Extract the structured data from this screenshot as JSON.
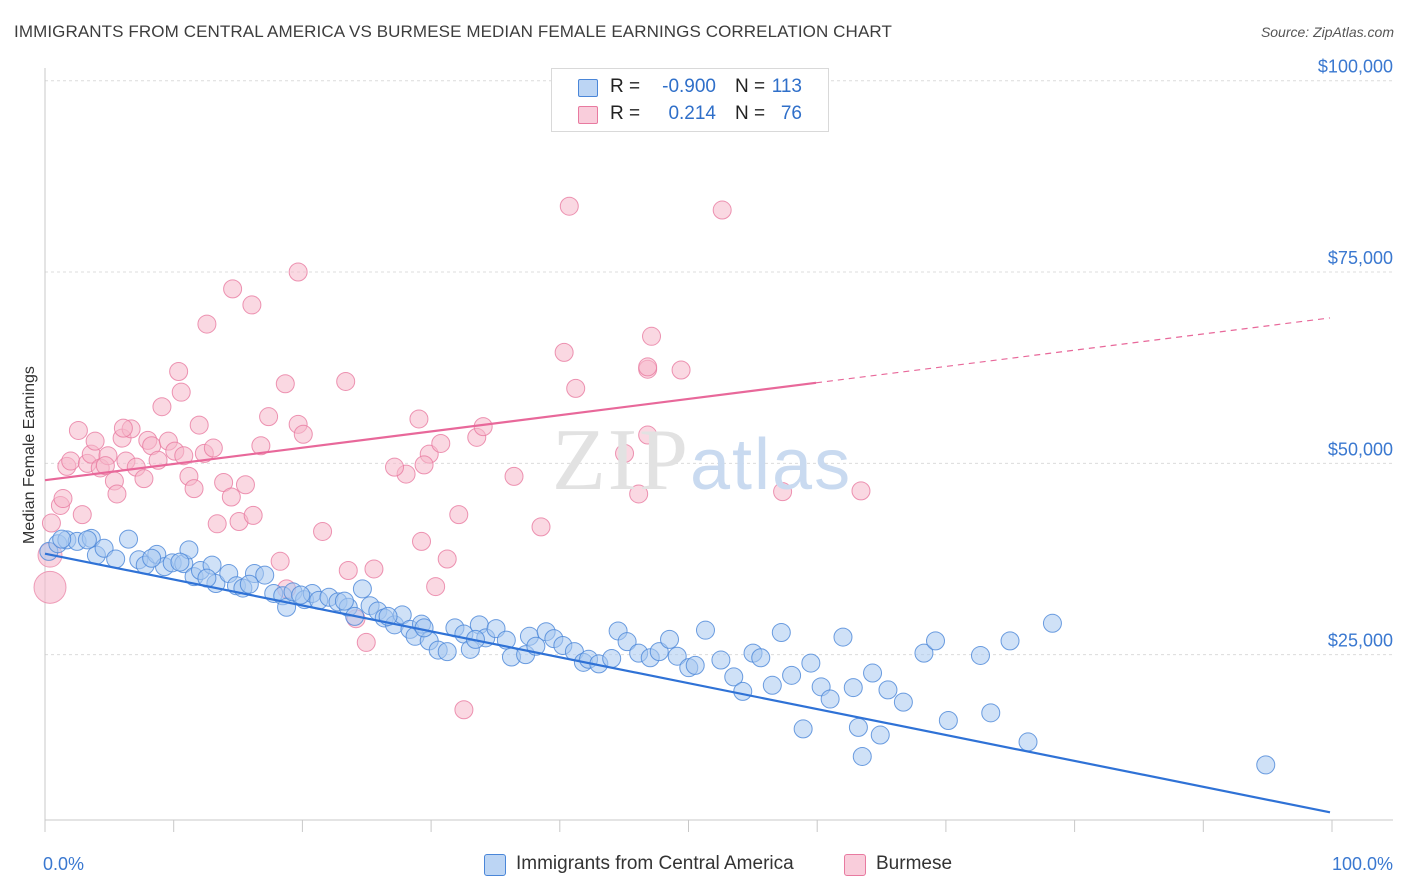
{
  "header": {
    "title": "IMMIGRANTS FROM CENTRAL AMERICA VS BURMESE MEDIAN FEMALE EARNINGS CORRELATION CHART",
    "source": "Source: ZipAtlas.com"
  },
  "watermark": {
    "zip": "ZIP",
    "atlas": "atlas"
  },
  "legend_top": {
    "rows": [
      {
        "r_label": "R =",
        "r_value": "-0.900",
        "n_label": "N =",
        "n_value": "113",
        "color": "#a8c8f0"
      },
      {
        "r_label": "R =",
        "r_value": "0.214",
        "n_label": "N =",
        "n_value": "76",
        "color": "#f5b8cb"
      }
    ]
  },
  "legend_bottom": {
    "items": [
      {
        "label": "Immigrants from Central America",
        "color": "#a8c8f0"
      },
      {
        "label": "Burmese",
        "color": "#f5b8cb"
      }
    ]
  },
  "chart_data": {
    "type": "scatter",
    "title": "IMMIGRANTS FROM CENTRAL AMERICA VS BURMESE MEDIAN FEMALE EARNINGS CORRELATION CHART",
    "xlabel": "",
    "ylabel": "Median Female Earnings",
    "xlim": [
      0,
      100
    ],
    "ylim": [
      0,
      105000
    ],
    "x_tick_labels": [
      "0.0%",
      "100.0%"
    ],
    "y_ticks": [
      25000,
      50000,
      75000,
      100000
    ],
    "y_tick_labels": [
      "$25,000",
      "$50,000",
      "$75,000",
      "$100,000"
    ],
    "grid": "horizontal dashed",
    "legend": "top-center",
    "colors": {
      "blue": "#4a86d8",
      "blue_fill": "#a8c8f0",
      "blue_line": "#2f72d6",
      "pink": "#e87aa0",
      "pink_fill": "#f5b8cb",
      "pink_line": "#e8689a"
    },
    "series": [
      {
        "name": "Immigrants from Central America",
        "color": "blue",
        "trend": {
          "x0": 0,
          "y0": 38200,
          "x1": 100,
          "y1": 4400,
          "dashed_from": null
        },
        "points": [
          [
            0.3,
            38500
          ],
          [
            1,
            39500
          ],
          [
            1.7,
            40000
          ],
          [
            2.5,
            39800
          ],
          [
            3.6,
            40200
          ],
          [
            4,
            38000
          ],
          [
            4.6,
            38900
          ],
          [
            6.5,
            40100
          ],
          [
            7.3,
            37400
          ],
          [
            7.8,
            36700
          ],
          [
            8.7,
            38100
          ],
          [
            9.3,
            36500
          ],
          [
            9.9,
            37000
          ],
          [
            10.8,
            36900
          ],
          [
            11.2,
            38700
          ],
          [
            11.6,
            35200
          ],
          [
            12.1,
            36000
          ],
          [
            13,
            36700
          ],
          [
            13.3,
            34300
          ],
          [
            14.3,
            35600
          ],
          [
            14.9,
            34000
          ],
          [
            15.4,
            33700
          ],
          [
            16.3,
            35600
          ],
          [
            17.1,
            35400
          ],
          [
            17.8,
            33000
          ],
          [
            18.5,
            32700
          ],
          [
            18.8,
            31200
          ],
          [
            19.3,
            33200
          ],
          [
            20.2,
            32200
          ],
          [
            20.8,
            33000
          ],
          [
            21.3,
            32100
          ],
          [
            22.1,
            32500
          ],
          [
            22.8,
            31900
          ],
          [
            23.6,
            31200
          ],
          [
            24.1,
            30000
          ],
          [
            24.7,
            33600
          ],
          [
            25.3,
            31400
          ],
          [
            25.9,
            30700
          ],
          [
            26.4,
            29800
          ],
          [
            27.2,
            28900
          ],
          [
            27.8,
            30200
          ],
          [
            28.4,
            28300
          ],
          [
            28.8,
            27400
          ],
          [
            29.3,
            29000
          ],
          [
            29.9,
            26800
          ],
          [
            30.6,
            25600
          ],
          [
            31.3,
            25400
          ],
          [
            31.9,
            28500
          ],
          [
            32.6,
            27700
          ],
          [
            33.1,
            25700
          ],
          [
            33.8,
            28900
          ],
          [
            34.3,
            27200
          ],
          [
            35.1,
            28400
          ],
          [
            35.9,
            26900
          ],
          [
            36.3,
            24700
          ],
          [
            37.4,
            25000
          ],
          [
            37.7,
            27400
          ],
          [
            38.2,
            26100
          ],
          [
            39,
            28000
          ],
          [
            39.6,
            27100
          ],
          [
            40.3,
            26200
          ],
          [
            41.2,
            25400
          ],
          [
            41.9,
            24000
          ],
          [
            42.3,
            24400
          ],
          [
            43.1,
            23800
          ],
          [
            44.1,
            24500
          ],
          [
            44.6,
            28100
          ],
          [
            45.3,
            26700
          ],
          [
            46.2,
            25200
          ],
          [
            47.1,
            24600
          ],
          [
            47.8,
            25400
          ],
          [
            48.6,
            27000
          ],
          [
            49.2,
            24800
          ],
          [
            50.1,
            23300
          ],
          [
            50.6,
            23600
          ],
          [
            51.4,
            28200
          ],
          [
            52.6,
            24300
          ],
          [
            53.6,
            22100
          ],
          [
            54.3,
            20200
          ],
          [
            55.1,
            25200
          ],
          [
            55.7,
            24600
          ],
          [
            56.6,
            21000
          ],
          [
            57.3,
            27900
          ],
          [
            58.1,
            22300
          ],
          [
            59,
            15300
          ],
          [
            59.6,
            23900
          ],
          [
            60.4,
            20800
          ],
          [
            61.1,
            19200
          ],
          [
            62.1,
            27300
          ],
          [
            62.9,
            20700
          ],
          [
            63.6,
            11700
          ],
          [
            63.3,
            15500
          ],
          [
            64.4,
            22600
          ],
          [
            65,
            14500
          ],
          [
            65.6,
            20400
          ],
          [
            66.8,
            18800
          ],
          [
            68.4,
            25200
          ],
          [
            69.3,
            26800
          ],
          [
            70.3,
            16400
          ],
          [
            72.8,
            24900
          ],
          [
            73.6,
            17400
          ],
          [
            75.1,
            26800
          ],
          [
            76.5,
            13600
          ],
          [
            78.4,
            29100
          ],
          [
            95,
            10600
          ],
          [
            1.3,
            40100
          ],
          [
            3.3,
            40000
          ],
          [
            5.5,
            37500
          ],
          [
            8.3,
            37600
          ],
          [
            10.5,
            37100
          ],
          [
            12.6,
            35000
          ],
          [
            15.9,
            34200
          ],
          [
            19.9,
            32800
          ],
          [
            23.3,
            32000
          ],
          [
            26.7,
            30000
          ],
          [
            29.5,
            28500
          ],
          [
            33.5,
            27000
          ]
        ]
      },
      {
        "name": "Burmese",
        "color": "pink",
        "trend": {
          "x0": 0,
          "y0": 47800,
          "x1": 100,
          "y1": 69000,
          "dashed_from": 60
        },
        "points": [
          [
            0.5,
            42200
          ],
          [
            1.2,
            44500
          ],
          [
            1.4,
            45400
          ],
          [
            1.7,
            49600
          ],
          [
            2,
            50300
          ],
          [
            2.6,
            54300
          ],
          [
            2.9,
            43300
          ],
          [
            3.3,
            50000
          ],
          [
            3.6,
            51200
          ],
          [
            3.9,
            52900
          ],
          [
            4.3,
            49400
          ],
          [
            4.9,
            51000
          ],
          [
            5.4,
            47700
          ],
          [
            5.6,
            46000
          ],
          [
            6,
            53300
          ],
          [
            6.3,
            50300
          ],
          [
            6.7,
            54500
          ],
          [
            7.1,
            49500
          ],
          [
            7.7,
            48000
          ],
          [
            8,
            53000
          ],
          [
            8.3,
            52300
          ],
          [
            8.8,
            50400
          ],
          [
            9.1,
            57400
          ],
          [
            9.6,
            52900
          ],
          [
            10.1,
            51600
          ],
          [
            10.8,
            51000
          ],
          [
            10.6,
            59300
          ],
          [
            11.2,
            48300
          ],
          [
            11.6,
            46700
          ],
          [
            12,
            55000
          ],
          [
            12.4,
            51300
          ],
          [
            13.1,
            52000
          ],
          [
            13.4,
            42100
          ],
          [
            13.9,
            47500
          ],
          [
            14.5,
            45600
          ],
          [
            15.1,
            42400
          ],
          [
            15.6,
            47200
          ],
          [
            16.2,
            43200
          ],
          [
            16.8,
            52300
          ],
          [
            17.4,
            56100
          ],
          [
            18.3,
            37200
          ],
          [
            18.8,
            33600
          ],
          [
            19.7,
            55100
          ],
          [
            20.1,
            53800
          ],
          [
            21.6,
            41100
          ],
          [
            23.6,
            36000
          ],
          [
            24.2,
            29700
          ],
          [
            25,
            26600
          ],
          [
            25.6,
            36200
          ],
          [
            28.1,
            48600
          ],
          [
            29.3,
            39800
          ],
          [
            30.4,
            33900
          ],
          [
            31.3,
            37500
          ],
          [
            32.2,
            43300
          ],
          [
            32.6,
            17800
          ],
          [
            33.6,
            53400
          ],
          [
            34.1,
            54800
          ],
          [
            29.9,
            51200
          ],
          [
            27.2,
            49500
          ],
          [
            30.8,
            52600
          ],
          [
            36.5,
            48300
          ],
          [
            38.6,
            41700
          ],
          [
            40.4,
            64500
          ],
          [
            41.3,
            59800
          ],
          [
            29.5,
            49800
          ],
          [
            45.1,
            51300
          ],
          [
            47.2,
            66600
          ],
          [
            46.9,
            62300
          ],
          [
            46.2,
            46000
          ],
          [
            46.9,
            53700
          ],
          [
            6.1,
            54600
          ],
          [
            10.4,
            62000
          ],
          [
            12.6,
            68200
          ],
          [
            14.6,
            72800
          ],
          [
            16.1,
            70700
          ],
          [
            18.7,
            60400
          ],
          [
            19.7,
            75000
          ],
          [
            23.4,
            60700
          ],
          [
            29.1,
            55800
          ],
          [
            40.8,
            83600
          ],
          [
            52.7,
            83100
          ],
          [
            46.9,
            62600
          ],
          [
            49.5,
            62200
          ],
          [
            57.4,
            46300
          ],
          [
            63.5,
            46400
          ],
          [
            4.7,
            49700
          ]
        ]
      }
    ]
  }
}
